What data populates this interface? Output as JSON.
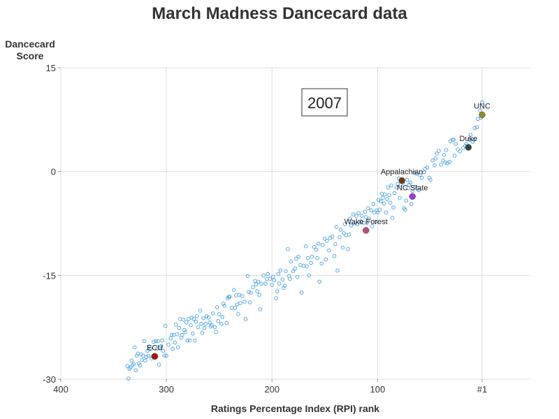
{
  "chart_data": {
    "type": "scatter",
    "title": "March Madness Dancecard data",
    "ylabel_lines": [
      "Dancecard",
      "Score"
    ],
    "xlabel": "Ratings Percentage Index (RPI) rank",
    "annotation_box": "2007",
    "xlim": [
      400,
      -44
    ],
    "ylim": [
      -30,
      15
    ],
    "x_reversed": true,
    "x_ticks": [
      {
        "value": 400,
        "label": "400"
      },
      {
        "value": 300,
        "label": "300"
      },
      {
        "value": 200,
        "label": "200"
      },
      {
        "value": 100,
        "label": "100"
      },
      {
        "value": 1,
        "label": "#1"
      }
    ],
    "y_ticks": [
      {
        "value": 15,
        "label": "15"
      },
      {
        "value": 0,
        "label": "0"
      },
      {
        "value": -15,
        "label": "-15"
      },
      {
        "value": -30,
        "label": "-30"
      }
    ],
    "grid": true,
    "colors": {
      "points": "#5aa9e6",
      "grid": "#dddddd"
    },
    "highlighted": [
      {
        "label": "UNC",
        "x": 1,
        "y": 8.2,
        "color": "#8c8c2a",
        "label_pos": "above"
      },
      {
        "label": "Duke",
        "x": 14,
        "y": 3.5,
        "color": "#2f4a3a",
        "label_pos": "above"
      },
      {
        "label": "Appalachian",
        "x": 77,
        "y": -1.3,
        "color": "#6e3a14",
        "label_pos": "above"
      },
      {
        "label": "NC State",
        "x": 67,
        "y": -3.6,
        "color": "#a23cd1",
        "label_pos": "above"
      },
      {
        "label": "Wake Forest",
        "x": 111,
        "y": -8.5,
        "color": "#b0507e",
        "label_pos": "above"
      },
      {
        "label": "ECU",
        "x": 311,
        "y": -26.7,
        "color": "#a0150c",
        "label_pos": "above"
      }
    ],
    "series": [
      {
        "values": [
          [
            1,
            10.0
          ],
          [
            2,
            7.8
          ],
          [
            3,
            8.8
          ],
          [
            5,
            7.6
          ],
          [
            6,
            6.4
          ],
          [
            8,
            6.3
          ],
          [
            9,
            4.6
          ],
          [
            10,
            4.3
          ],
          [
            12,
            5.3
          ],
          [
            13,
            4.6
          ],
          [
            16,
            4.0
          ],
          [
            17,
            3.7
          ],
          [
            19,
            3.4
          ],
          [
            22,
            2.9
          ],
          [
            24,
            3.2
          ],
          [
            26,
            4.0
          ],
          [
            27,
            2.3
          ],
          [
            28,
            4.6
          ],
          [
            29,
            4.6
          ],
          [
            31,
            4.4
          ],
          [
            32,
            1.4
          ],
          [
            34,
            1.2
          ],
          [
            35,
            3.1
          ],
          [
            36,
            1.3
          ],
          [
            37,
            2.4
          ],
          [
            38,
            1.6
          ],
          [
            40,
            1.0
          ],
          [
            42,
            3.0
          ],
          [
            44,
            2.6
          ],
          [
            45,
            1.9
          ],
          [
            46,
            0.9
          ],
          [
            48,
            1.6
          ],
          [
            50,
            -1.2
          ],
          [
            51,
            -0.9
          ],
          [
            53,
            0.6
          ],
          [
            55,
            0.4
          ],
          [
            56,
            -0.1
          ],
          [
            58,
            -0.9
          ],
          [
            60,
            -0.5
          ],
          [
            61,
            -2.7
          ],
          [
            63,
            -0.3
          ],
          [
            64,
            -2.2
          ],
          [
            65,
            -0.2
          ],
          [
            67,
            -2.8
          ],
          [
            68,
            -4.7
          ],
          [
            69,
            -1.6
          ],
          [
            70,
            -1.9
          ],
          [
            71,
            -2.4
          ],
          [
            72,
            -1.2
          ],
          [
            73,
            -4.2
          ],
          [
            74,
            -5.5
          ],
          [
            75,
            -5.3
          ],
          [
            76,
            -1.6
          ],
          [
            78,
            -1.9
          ],
          [
            79,
            -3.8
          ],
          [
            80,
            -1.0
          ],
          [
            81,
            -1.8
          ],
          [
            82,
            -2.3
          ],
          [
            84,
            -3.1
          ],
          [
            85,
            -5.2
          ],
          [
            86,
            -6.7
          ],
          [
            87,
            -2.0
          ],
          [
            88,
            -4.5
          ],
          [
            89,
            -3.4
          ],
          [
            90,
            -2.3
          ],
          [
            91,
            -4.0
          ],
          [
            92,
            -5.9
          ],
          [
            93,
            -3.3
          ],
          [
            94,
            -4.6
          ],
          [
            95,
            -3.8
          ],
          [
            96,
            -3.2
          ],
          [
            97,
            -4.3
          ],
          [
            98,
            -5.5
          ],
          [
            99,
            -4.1
          ],
          [
            100,
            -5.9
          ],
          [
            101,
            -5.6
          ],
          [
            102,
            -7.3
          ],
          [
            103,
            -5.9
          ],
          [
            104,
            -4.7
          ],
          [
            105,
            -7.9
          ],
          [
            106,
            -5.6
          ],
          [
            108,
            -6.8
          ],
          [
            109,
            -5.3
          ],
          [
            110,
            -7.4
          ],
          [
            111,
            -6.6
          ],
          [
            112,
            -5.8
          ],
          [
            113,
            -7.4
          ],
          [
            115,
            -6.4
          ],
          [
            116,
            -7.2
          ],
          [
            118,
            -6.0
          ],
          [
            119,
            -7.6
          ],
          [
            120,
            -6.4
          ],
          [
            122,
            -7.5
          ],
          [
            123,
            -6.2
          ],
          [
            125,
            -7.8
          ],
          [
            126,
            -6.8
          ],
          [
            127,
            -9.1
          ],
          [
            128,
            -11.2
          ],
          [
            130,
            -9.2
          ],
          [
            131,
            -7.6
          ],
          [
            132,
            -8.9
          ],
          [
            133,
            -11.0
          ],
          [
            135,
            -8.4
          ],
          [
            136,
            -9.5
          ],
          [
            138,
            -14.3
          ],
          [
            139,
            -8.0
          ],
          [
            140,
            -10.5
          ],
          [
            141,
            -12.2
          ],
          [
            143,
            -9.4
          ],
          [
            145,
            -9.6
          ],
          [
            146,
            -11.4
          ],
          [
            148,
            -10.0
          ],
          [
            149,
            -12.7
          ],
          [
            150,
            -9.7
          ],
          [
            152,
            -10.6
          ],
          [
            153,
            -13.3
          ],
          [
            155,
            -15.9
          ],
          [
            156,
            -10.4
          ],
          [
            157,
            -12.5
          ],
          [
            158,
            -11.3
          ],
          [
            160,
            -10.9
          ],
          [
            162,
            -12.3
          ],
          [
            163,
            -13.2
          ],
          [
            165,
            -15.0
          ],
          [
            166,
            -12.5
          ],
          [
            167,
            -13.7
          ],
          [
            168,
            -10.8
          ],
          [
            170,
            -13.6
          ],
          [
            172,
            -17.5
          ],
          [
            173,
            -13.5
          ],
          [
            175,
            -12.3
          ],
          [
            176,
            -15.2
          ],
          [
            177,
            -12.6
          ],
          [
            178,
            -14.0
          ],
          [
            180,
            -14.4
          ],
          [
            182,
            -13.0
          ],
          [
            183,
            -15.5
          ],
          [
            184,
            -15.1
          ],
          [
            185,
            -11.2
          ],
          [
            187,
            -14.4
          ],
          [
            188,
            -16.5
          ],
          [
            189,
            -16.8
          ],
          [
            190,
            -15.6
          ],
          [
            192,
            -14.3
          ],
          [
            193,
            -16.2
          ],
          [
            194,
            -14.8
          ],
          [
            195,
            -17.3
          ],
          [
            196,
            -18.3
          ],
          [
            198,
            -15.7
          ],
          [
            199,
            -15.2
          ],
          [
            200,
            -16.4
          ],
          [
            202,
            -15.5
          ],
          [
            204,
            -14.8
          ],
          [
            205,
            -15.5
          ],
          [
            206,
            -16.2
          ],
          [
            208,
            -15.0
          ],
          [
            210,
            -16.2
          ],
          [
            211,
            -19.9
          ],
          [
            212,
            -17.8
          ],
          [
            213,
            -15.9
          ],
          [
            214,
            -17.3
          ],
          [
            215,
            -16.3
          ],
          [
            216,
            -15.8
          ],
          [
            218,
            -16.7
          ],
          [
            220,
            -17.5
          ],
          [
            221,
            -18.9
          ],
          [
            222,
            -17.4
          ],
          [
            223,
            -15.1
          ],
          [
            225,
            -21.3
          ],
          [
            226,
            -18.8
          ],
          [
            228,
            -18.0
          ],
          [
            230,
            -19.0
          ],
          [
            231,
            -17.8
          ],
          [
            232,
            -20.6
          ],
          [
            233,
            -19.2
          ],
          [
            234,
            -17.9
          ],
          [
            235,
            -19.7
          ],
          [
            236,
            -17.1
          ],
          [
            238,
            -19.7
          ],
          [
            240,
            -18.1
          ],
          [
            241,
            -18.1
          ],
          [
            242,
            -18.3
          ],
          [
            243,
            -21.9
          ],
          [
            245,
            -19.4
          ],
          [
            246,
            -19.1
          ],
          [
            247,
            -21.0
          ],
          [
            248,
            -22.0
          ],
          [
            250,
            -20.6
          ],
          [
            251,
            -21.6
          ],
          [
            252,
            -19.6
          ],
          [
            253,
            -23.2
          ],
          [
            254,
            -22.5
          ],
          [
            256,
            -20.5
          ],
          [
            257,
            -22.2
          ],
          [
            258,
            -22.4
          ],
          [
            259,
            -21.8
          ],
          [
            260,
            -21.1
          ],
          [
            262,
            -20.9
          ],
          [
            263,
            -22.0
          ],
          [
            264,
            -22.6
          ],
          [
            265,
            -21.2
          ],
          [
            266,
            -23.3
          ],
          [
            267,
            -22.0
          ],
          [
            268,
            -20.1
          ],
          [
            270,
            -22.5
          ],
          [
            271,
            -20.9
          ],
          [
            272,
            -21.7
          ],
          [
            273,
            -24.4
          ],
          [
            274,
            -21.3
          ],
          [
            275,
            -23.4
          ],
          [
            276,
            -21.1
          ],
          [
            277,
            -22.2
          ],
          [
            278,
            -24.4
          ],
          [
            279,
            -21.3
          ],
          [
            280,
            -24.4
          ],
          [
            281,
            -21.8
          ],
          [
            282,
            -23.2
          ],
          [
            283,
            -22.9
          ],
          [
            284,
            -21.4
          ],
          [
            285,
            -23.6
          ],
          [
            286,
            -24.0
          ],
          [
            287,
            -21.3
          ],
          [
            288,
            -22.6
          ],
          [
            289,
            -25.4
          ],
          [
            290,
            -23.5
          ],
          [
            291,
            -22.1
          ],
          [
            292,
            -24.7
          ],
          [
            293,
            -23.6
          ],
          [
            294,
            -25.6
          ],
          [
            295,
            -23.6
          ],
          [
            296,
            -24.1
          ],
          [
            298,
            -25.0
          ],
          [
            300,
            -26.6
          ],
          [
            301,
            -22.3
          ],
          [
            302,
            -26.6
          ],
          [
            303,
            -25.9
          ],
          [
            304,
            -24.4
          ],
          [
            305,
            -25.2
          ],
          [
            306,
            -25.4
          ],
          [
            307,
            -27.9
          ],
          [
            308,
            -24.5
          ],
          [
            309,
            -25.6
          ],
          [
            310,
            -24.5
          ],
          [
            312,
            -24.6
          ],
          [
            313,
            -26.7
          ],
          [
            314,
            -27.0
          ],
          [
            315,
            -25.6
          ],
          [
            316,
            -25.3
          ],
          [
            317,
            -26.6
          ],
          [
            318,
            -25.9
          ],
          [
            319,
            -26.8
          ],
          [
            320,
            -27.3
          ],
          [
            321,
            -24.5
          ],
          [
            322,
            -26.6
          ],
          [
            323,
            -27.2
          ],
          [
            324,
            -26.4
          ],
          [
            325,
            -28.0
          ],
          [
            326,
            -27.7
          ],
          [
            327,
            -26.3
          ],
          [
            328,
            -26.6
          ],
          [
            329,
            -28.7
          ],
          [
            330,
            -25.4
          ],
          [
            331,
            -27.8
          ],
          [
            332,
            -28.0
          ],
          [
            333,
            -27.3
          ],
          [
            334,
            -28.3
          ],
          [
            335,
            -28.5
          ],
          [
            336,
            -29.9
          ],
          [
            337,
            -28.1
          ]
        ]
      }
    ]
  }
}
